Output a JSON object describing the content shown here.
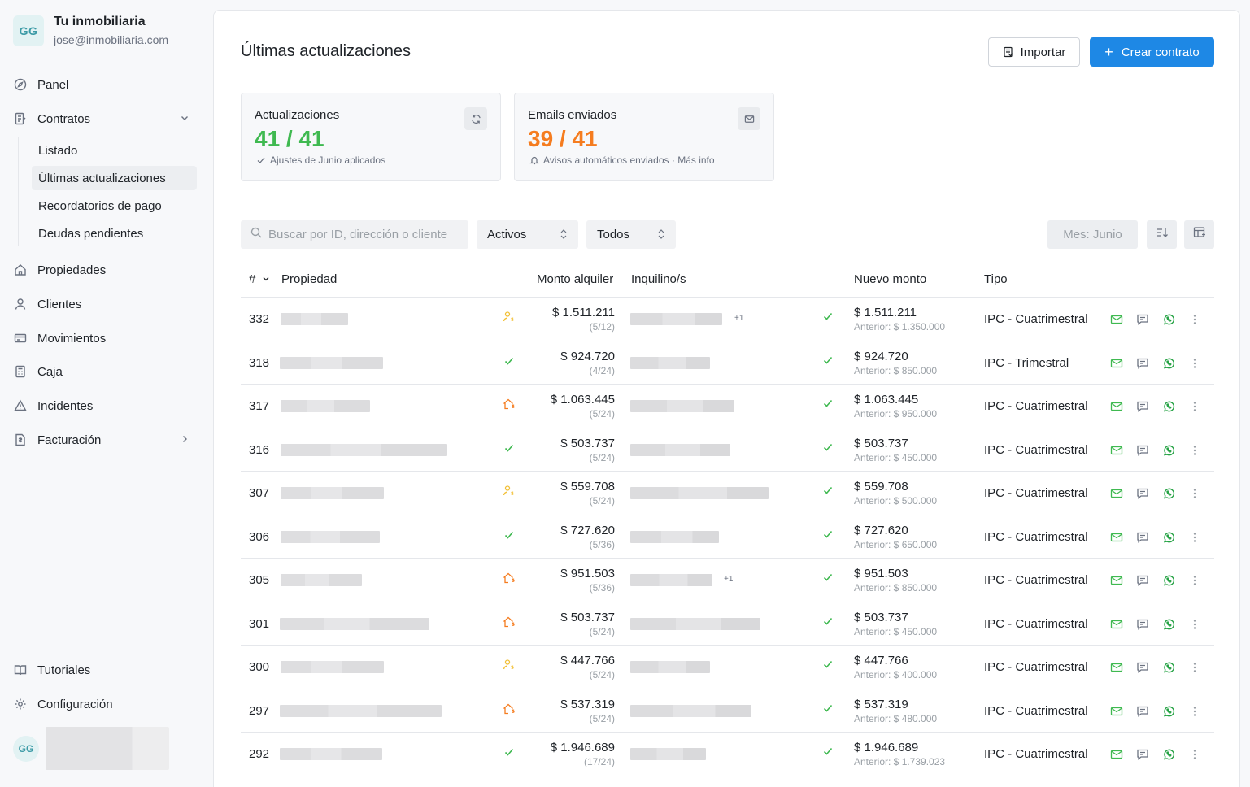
{
  "brand": {
    "initials": "GG",
    "name": "Tu inmobiliaria",
    "email": "jose@inmobiliaria.com"
  },
  "nav": {
    "panel": "Panel",
    "contratos": "Contratos",
    "sub": [
      "Listado",
      "Últimas actualizaciones",
      "Recordatorios de pago",
      "Deudas pendientes"
    ],
    "propiedades": "Propiedades",
    "clientes": "Clientes",
    "movimientos": "Movimientos",
    "caja": "Caja",
    "incidentes": "Incidentes",
    "facturacion": "Facturación",
    "tutoriales": "Tutoriales",
    "configuracion": "Configuración"
  },
  "user": {
    "initials": "GG"
  },
  "header": {
    "title": "Últimas actualizaciones",
    "import_label": "Importar",
    "create_label": "Crear contrato"
  },
  "stats": {
    "updates": {
      "label": "Actualizaciones",
      "value": "41 / 41",
      "sub": "Ajustes de Junio aplicados",
      "color": "#3fb950"
    },
    "emails": {
      "label": "Emails enviados",
      "value": "39 / 41",
      "sub": "Avisos automáticos enviados · Más info",
      "color": "#f57c1f"
    }
  },
  "toolbar": {
    "search_placeholder": "Buscar por ID, dirección o cliente",
    "status_value": "Activos",
    "type_value": "Todos",
    "month_label": "Mes: Junio"
  },
  "table": {
    "headers": {
      "id": "#",
      "propiedad": "Propiedad",
      "monto": "Monto alquiler",
      "inquilino": "Inquilino/s",
      "nuevo": "Nuevo monto",
      "tipo": "Tipo"
    },
    "rows": [
      {
        "id": "332",
        "flag": "person",
        "monto": "$ 1.511.211",
        "cuota": "(5/12)",
        "plus": "+1",
        "nuevo": "$ 1.511.211",
        "anterior": "Anterior: $ 1.350.000",
        "tipo": "IPC - Cuatrimestral"
      },
      {
        "id": "318",
        "flag": "check",
        "monto": "$ 924.720",
        "cuota": "(4/24)",
        "plus": "",
        "nuevo": "$ 924.720",
        "anterior": "Anterior: $ 850.000",
        "tipo": "IPC - Trimestral"
      },
      {
        "id": "317",
        "flag": "house",
        "monto": "$ 1.063.445",
        "cuota": "(5/24)",
        "plus": "",
        "nuevo": "$ 1.063.445",
        "anterior": "Anterior: $ 950.000",
        "tipo": "IPC - Cuatrimestral"
      },
      {
        "id": "316",
        "flag": "check",
        "monto": "$ 503.737",
        "cuota": "(5/24)",
        "plus": "",
        "nuevo": "$ 503.737",
        "anterior": "Anterior: $ 450.000",
        "tipo": "IPC - Cuatrimestral"
      },
      {
        "id": "307",
        "flag": "person",
        "monto": "$ 559.708",
        "cuota": "(5/24)",
        "plus": "",
        "nuevo": "$ 559.708",
        "anterior": "Anterior: $ 500.000",
        "tipo": "IPC - Cuatrimestral"
      },
      {
        "id": "306",
        "flag": "check",
        "monto": "$ 727.620",
        "cuota": "(5/36)",
        "plus": "",
        "nuevo": "$ 727.620",
        "anterior": "Anterior: $ 650.000",
        "tipo": "IPC - Cuatrimestral"
      },
      {
        "id": "305",
        "flag": "house",
        "monto": "$ 951.503",
        "cuota": "(5/36)",
        "plus": "+1",
        "nuevo": "$ 951.503",
        "anterior": "Anterior: $ 850.000",
        "tipo": "IPC - Cuatrimestral"
      },
      {
        "id": "301",
        "flag": "house",
        "monto": "$ 503.737",
        "cuota": "(5/24)",
        "plus": "",
        "nuevo": "$ 503.737",
        "anterior": "Anterior: $ 450.000",
        "tipo": "IPC - Cuatrimestral"
      },
      {
        "id": "300",
        "flag": "person",
        "monto": "$ 447.766",
        "cuota": "(5/24)",
        "plus": "",
        "nuevo": "$ 447.766",
        "anterior": "Anterior: $ 400.000",
        "tipo": "IPC - Cuatrimestral"
      },
      {
        "id": "297",
        "flag": "house",
        "monto": "$ 537.319",
        "cuota": "(5/24)",
        "plus": "",
        "nuevo": "$ 537.319",
        "anterior": "Anterior: $ 480.000",
        "tipo": "IPC - Cuatrimestral"
      },
      {
        "id": "292",
        "flag": "check",
        "monto": "$ 1.946.689",
        "cuota": "(17/24)",
        "plus": "",
        "nuevo": "$ 1.946.689",
        "anterior": "Anterior: $ 1.739.023",
        "tipo": "IPC - Cuatrimestral"
      }
    ]
  },
  "colors": {
    "green": "#3fb950",
    "orange": "#f57c1f",
    "yellow": "#f2c037",
    "blue": "#1e88e5",
    "whatsapp": "#25a244"
  }
}
